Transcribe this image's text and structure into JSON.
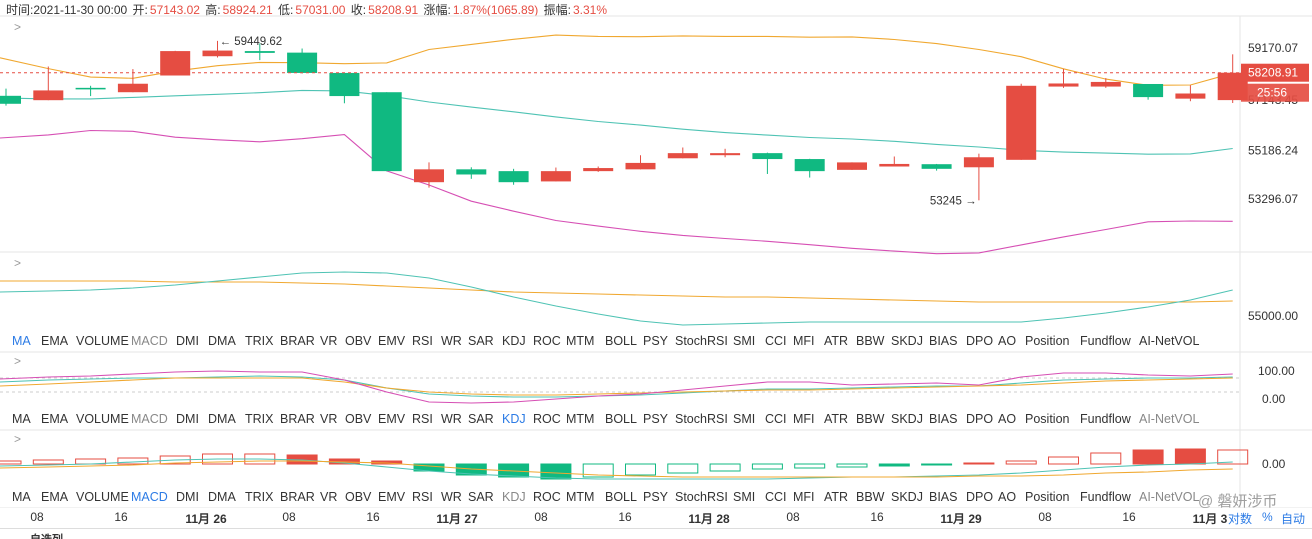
{
  "info_bar": {
    "time_label": "时间:2021-11-30 00:00",
    "open_label": "开:",
    "open": "57143.02",
    "high_label": "高:",
    "high": "58924.21",
    "low_label": "低:",
    "low": "57031.00",
    "close_label": "收:",
    "close": "58208.91",
    "change_label": "涨幅:",
    "change": "1.87%(1065.89)",
    "amplitude_label": "振幅:",
    "amplitude": "3.31%"
  },
  "main_chart": {
    "price_ticks": [
      "59170.07",
      "57143.45",
      "55186.24",
      "53296.07"
    ],
    "current_price": "58208.91",
    "countdown": "25:56",
    "high_annotation": "59449.62",
    "low_annotation": "53245",
    "colors": {
      "up": "#e54d42",
      "down": "#10b981",
      "upper_band": "#f0a830",
      "mid_band": "#4fc3b4",
      "lower_band": "#d64fb4"
    }
  },
  "chart_data": {
    "type": "candlestick",
    "interval": "8h",
    "ohlc": [
      [
        57310,
        57000,
        57590,
        56930
      ],
      [
        57140,
        57520,
        58450,
        57140
      ],
      [
        57620,
        57560,
        57700,
        57300
      ],
      [
        57450,
        57780,
        58350,
        57450
      ],
      [
        58100,
        59050,
        59060,
        58100
      ],
      [
        58850,
        59070,
        59449.62,
        58800
      ],
      [
        59050,
        58980,
        59350,
        58700
      ],
      [
        58990,
        58200,
        59150,
        58180
      ],
      [
        58200,
        57300,
        58200,
        57020
      ],
      [
        57450,
        54380,
        57450,
        54380
      ],
      [
        53950,
        54450,
        54720,
        53740
      ],
      [
        54450,
        54250,
        54530,
        54080
      ],
      [
        54380,
        53950,
        54470,
        53850
      ],
      [
        53980,
        54380,
        54520,
        53980
      ],
      [
        54380,
        54500,
        54560,
        54350
      ],
      [
        54450,
        54700,
        55000,
        54450
      ],
      [
        54880,
        55080,
        55300,
        54880
      ],
      [
        55000,
        55080,
        55250,
        54920
      ],
      [
        55080,
        54850,
        55100,
        54270
      ],
      [
        54850,
        54380,
        54860,
        54130
      ],
      [
        54430,
        54720,
        54720,
        54430
      ],
      [
        54560,
        54660,
        54950,
        54560
      ],
      [
        54650,
        54470,
        54660,
        54400
      ],
      [
        54530,
        54920,
        55060,
        53245
      ],
      [
        54820,
        57700,
        57780,
        54820
      ],
      [
        57670,
        57790,
        58360,
        57620
      ],
      [
        57670,
        57850,
        58000,
        57620
      ],
      [
        57770,
        57260,
        57770,
        57160
      ],
      [
        57200,
        57400,
        57720,
        57100
      ],
      [
        57143.02,
        58208.91,
        58924.21,
        57031.0
      ]
    ],
    "bollinger": {
      "upper": [
        58790,
        58370,
        58040,
        57990,
        58270,
        58480,
        58610,
        58600,
        58560,
        58590,
        59110,
        59310,
        59510,
        59670,
        59620,
        59610,
        59640,
        59620,
        59620,
        59590,
        59600,
        59500,
        59340,
        59110,
        58830,
        58360,
        57960,
        57720,
        57730,
        58190
      ],
      "mid": [
        57230,
        57190,
        57190,
        57250,
        57310,
        57370,
        57430,
        57520,
        57500,
        57320,
        57070,
        56870,
        56690,
        56490,
        56310,
        56170,
        56010,
        55880,
        55780,
        55690,
        55630,
        55540,
        55420,
        55320,
        55190,
        55120,
        55080,
        55040,
        55050,
        55260
      ],
      "lower": [
        55670,
        55790,
        55960,
        55930,
        55700,
        55600,
        55520,
        55640,
        55800,
        54390,
        53840,
        53210,
        52820,
        52460,
        52240,
        52040,
        51880,
        51760,
        51650,
        51520,
        51380,
        51270,
        51170,
        51200,
        51510,
        51820,
        52110,
        52410,
        52440,
        52430
      ]
    },
    "indicator_tabs": [
      "MA",
      "EMA",
      "VOLUME",
      "MACD",
      "DMI",
      "DMA",
      "TRIX",
      "BRAR",
      "VR",
      "OBV",
      "EMV",
      "RSI",
      "WR",
      "SAR",
      "KDJ",
      "ROC",
      "MTM",
      "BOLL",
      "PSY",
      "StochRSI",
      "SMI",
      "CCI",
      "MFI",
      "ATR",
      "BBW",
      "SKDJ",
      "BIAS",
      "DPO",
      "AO",
      "Position",
      "Fundflow",
      "AI-NetVOL"
    ],
    "panes": [
      {
        "active": "MA",
        "disabled": [
          "MACD"
        ],
        "tick": "55000.00"
      },
      {
        "active": "KDJ",
        "disabled": [
          "MACD",
          "KDJ",
          "AI-NetVOL"
        ],
        "ticks": [
          "100.00",
          "0.00"
        ]
      },
      {
        "active": "MACD",
        "disabled": [
          "KDJ",
          "AI-NetVOL"
        ],
        "tick": "0.00"
      }
    ],
    "x_ticks": [
      {
        "label": "08",
        "bold": false
      },
      {
        "label": "16",
        "bold": false
      },
      {
        "label": "11月 26",
        "bold": true
      },
      {
        "label": "08",
        "bold": false
      },
      {
        "label": "16",
        "bold": false
      },
      {
        "label": "11月 27",
        "bold": true
      },
      {
        "label": "08",
        "bold": false
      },
      {
        "label": "16",
        "bold": false
      },
      {
        "label": "11月 28",
        "bold": true
      },
      {
        "label": "08",
        "bold": false
      },
      {
        "label": "16",
        "bold": false
      },
      {
        "label": "11月 29",
        "bold": true
      },
      {
        "label": "08",
        "bold": false
      },
      {
        "label": "16",
        "bold": false
      },
      {
        "label": "11月 3",
        "bold": true
      }
    ]
  },
  "corner": {
    "log_label": "对数",
    "pct_label": "%",
    "auto_label": "自动"
  },
  "watermark": "@ 磐妍涉币",
  "bottom_strip_label": "自选列"
}
